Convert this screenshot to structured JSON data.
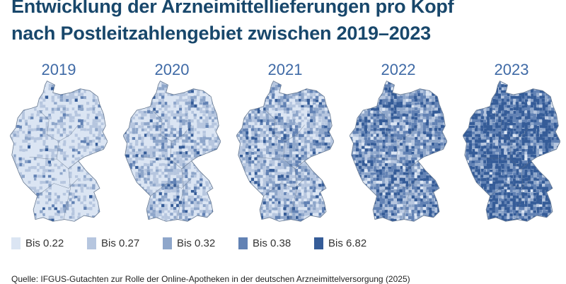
{
  "title_line1": "Entwicklung der Arzneimittellieferungen pro Kopf",
  "title_line2": "nach Postleitzahlengebiet zwischen 2019–2023",
  "maps": [
    {
      "year": "2019",
      "weights": [
        0.62,
        0.25,
        0.09,
        0.03,
        0.01
      ]
    },
    {
      "year": "2020",
      "weights": [
        0.38,
        0.33,
        0.19,
        0.07,
        0.03
      ]
    },
    {
      "year": "2021",
      "weights": [
        0.22,
        0.3,
        0.27,
        0.15,
        0.06
      ]
    },
    {
      "year": "2022",
      "weights": [
        0.08,
        0.15,
        0.25,
        0.32,
        0.2
      ]
    },
    {
      "year": "2023",
      "weights": [
        0.03,
        0.06,
        0.12,
        0.27,
        0.52
      ]
    }
  ],
  "legend": [
    {
      "label": "Bis 0.22",
      "color": "#dbe5f3"
    },
    {
      "label": "Bis 0.27",
      "color": "#b6c6df"
    },
    {
      "label": "Bis 0.32",
      "color": "#8ea6ca"
    },
    {
      "label": "Bis 0.38",
      "color": "#6282b4"
    },
    {
      "label": "Bis 6.82",
      "color": "#355c98"
    }
  ],
  "source": "Quelle: IFGUS-Gutachten zur Rolle der Online-Apotheken in der deutschen Arzneimittelversorgung (2025)"
}
